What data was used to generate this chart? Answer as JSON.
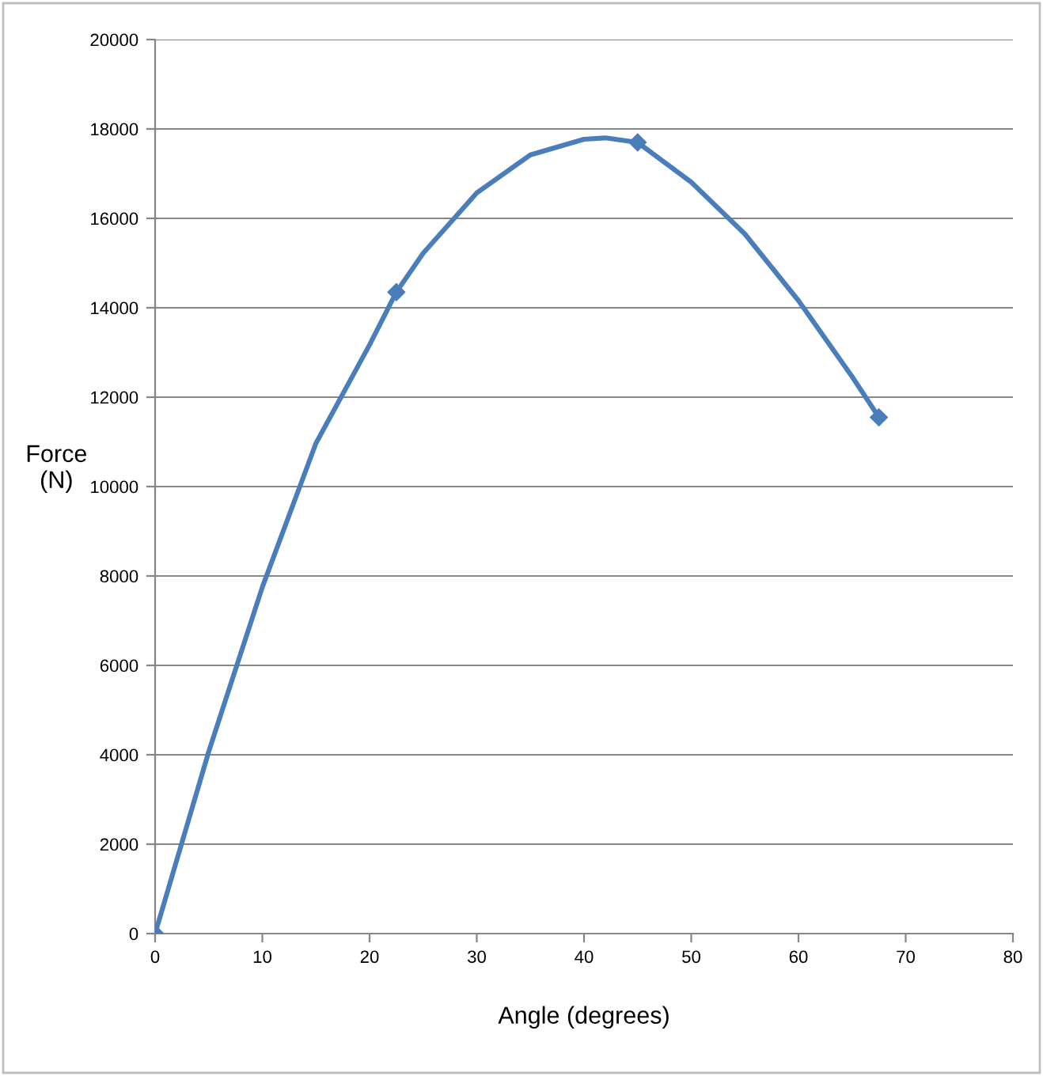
{
  "chart_data": {
    "type": "line",
    "xlabel": "Angle (degrees)",
    "ylabel": "Force\n(N)",
    "series": [
      {
        "marker": "none",
        "color": "#4a7ebb",
        "x": [
          0,
          5,
          10,
          15,
          20,
          22.5,
          25,
          30,
          35,
          40,
          42,
          45,
          50,
          55,
          60,
          65,
          67.5
        ],
        "values": [
          0,
          4070,
          7750,
          10970,
          13170,
          14350,
          15220,
          16570,
          17420,
          17770,
          17800,
          17700,
          16810,
          15650,
          14160,
          12460,
          11550
        ]
      },
      {
        "type": "scatter",
        "marker": "diamond",
        "color": "#4a7ebb",
        "x": [
          0,
          22.5,
          45,
          67.5
        ],
        "values": [
          0,
          14350,
          17700,
          11550
        ]
      }
    ],
    "xlim": [
      0,
      80
    ],
    "xticks": [
      0,
      10,
      20,
      30,
      40,
      50,
      60,
      70,
      80
    ],
    "ylim": [
      0,
      20000
    ],
    "yticks": [
      0,
      2000,
      4000,
      6000,
      8000,
      10000,
      12000,
      14000,
      16000,
      18000,
      20000
    ],
    "grid": "y",
    "line_style": "solid",
    "legend": false
  }
}
